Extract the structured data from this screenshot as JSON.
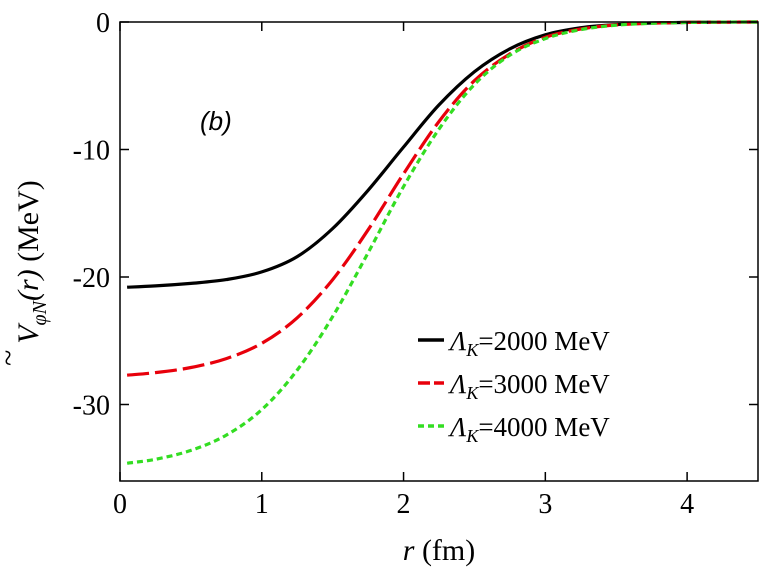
{
  "chart_data": {
    "type": "line",
    "panel_label": "(b)",
    "xlabel": {
      "var": "r",
      "unit": " (fm)"
    },
    "ylabel": {
      "main": "V",
      "tilde": "~",
      "sub": "φN",
      "arg": "(r)",
      "unit": " (MeV)"
    },
    "xlim": [
      0,
      4.5
    ],
    "ylim": [
      -36,
      0
    ],
    "xticks": [
      0,
      1,
      2,
      3,
      4
    ],
    "yticks": [
      0,
      -10,
      -20,
      -30
    ],
    "legend_position": "bottom-right",
    "series": [
      {
        "name": "ΛK=2000 MeV",
        "label_symbol": "Λ",
        "label_sub": "K",
        "label_rest": "=2000 MeV",
        "color": "#000000",
        "dash": "solid",
        "x": [
          0.05,
          0.25,
          0.5,
          0.75,
          1.0,
          1.25,
          1.5,
          1.75,
          2.0,
          2.25,
          2.5,
          2.75,
          3.0,
          3.25,
          3.5,
          3.75,
          4.0,
          4.25,
          4.5
        ],
        "y": [
          -20.8,
          -20.7,
          -20.5,
          -20.2,
          -19.6,
          -18.4,
          -16.2,
          -13.2,
          -9.8,
          -6.5,
          -3.9,
          -2.1,
          -1.0,
          -0.45,
          -0.2,
          -0.08,
          -0.03,
          -0.01,
          0
        ]
      },
      {
        "name": "ΛK=3000 MeV",
        "label_symbol": "Λ",
        "label_sub": "K",
        "label_rest": "=3000 MeV",
        "color": "#e8000b",
        "dash": "long-dash",
        "x": [
          0.05,
          0.25,
          0.5,
          0.75,
          1.0,
          1.25,
          1.5,
          1.75,
          2.0,
          2.25,
          2.5,
          2.75,
          3.0,
          3.25,
          3.5,
          3.75,
          4.0,
          4.25,
          4.5
        ],
        "y": [
          -27.7,
          -27.5,
          -27.1,
          -26.4,
          -25.2,
          -23.2,
          -20.2,
          -16.3,
          -11.9,
          -7.8,
          -4.6,
          -2.5,
          -1.2,
          -0.55,
          -0.23,
          -0.09,
          -0.03,
          -0.01,
          0
        ]
      },
      {
        "name": "ΛK=4000 MeV",
        "label_symbol": "Λ",
        "label_sub": "K",
        "label_rest": "=4000 MeV",
        "color": "#33dd22",
        "dash": "short-dash",
        "x": [
          0.05,
          0.25,
          0.5,
          0.75,
          1.0,
          1.25,
          1.5,
          1.75,
          2.0,
          2.25,
          2.5,
          2.75,
          3.0,
          3.25,
          3.5,
          3.75,
          4.0,
          4.25,
          4.5
        ],
        "y": [
          -34.6,
          -34.3,
          -33.6,
          -32.4,
          -30.4,
          -27.3,
          -23.1,
          -18.1,
          -12.9,
          -8.4,
          -4.9,
          -2.6,
          -1.3,
          -0.6,
          -0.25,
          -0.1,
          -0.04,
          -0.01,
          0
        ]
      }
    ]
  }
}
